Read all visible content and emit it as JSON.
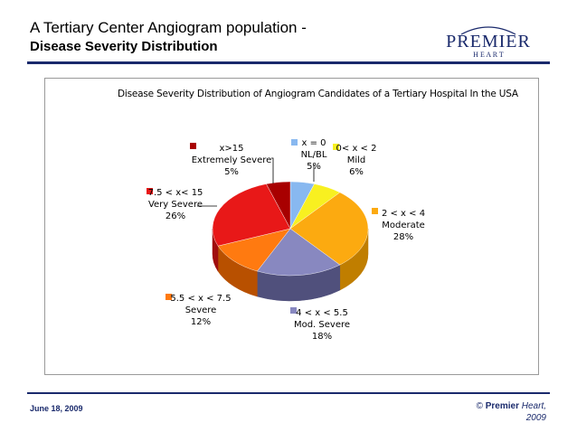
{
  "slide": {
    "title_line1": "A Tertiary Center Angiogram population -",
    "title_line2": "Disease Severity Distribution",
    "date": "June 18, 2009",
    "copyright_symbol": "©",
    "copyright_brand": "Premier",
    "copyright_rest": "Heart,",
    "copyright_year": "2009"
  },
  "logo": {
    "main": "PREMIER",
    "sub": "H E A R T",
    "color": "#1a2a6c"
  },
  "chart_data": {
    "type": "pie",
    "title": "Disease Severity Distribution of Angiogram Candidates of a Tertiary Hospital In the USA",
    "slices": [
      {
        "range": "x = 0",
        "name": "NL/BL",
        "value": 5,
        "label": "5%",
        "color": "#88b8f0",
        "side": "#5e88c0"
      },
      {
        "range": "0< x < 2",
        "name": "Mild",
        "value": 6,
        "label": "6%",
        "color": "#f8f020",
        "side": "#c0b800"
      },
      {
        "range": "2 < x < 4",
        "name": "Moderate",
        "value": 28,
        "label": "28%",
        "color": "#fcaa10",
        "side": "#c07e00"
      },
      {
        "range": "4 < x < 5.5",
        "name": "Mod. Severe",
        "value": 18,
        "label": "18%",
        "color": "#8888c0",
        "side": "#50507c"
      },
      {
        "range": "5.5 < x < 7.5",
        "name": "Severe",
        "value": 12,
        "label": "12%",
        "color": "#ff7a10",
        "side": "#b85000"
      },
      {
        "range": "7.5 < x< 15",
        "name": "Very Severe",
        "value": 26,
        "label": "26%",
        "color": "#e81818",
        "side": "#a00e0e"
      },
      {
        "range": "x>15",
        "name": "Extremely Severe",
        "value": 5,
        "label": "5%",
        "color": "#a80000",
        "side": "#700000"
      }
    ]
  }
}
